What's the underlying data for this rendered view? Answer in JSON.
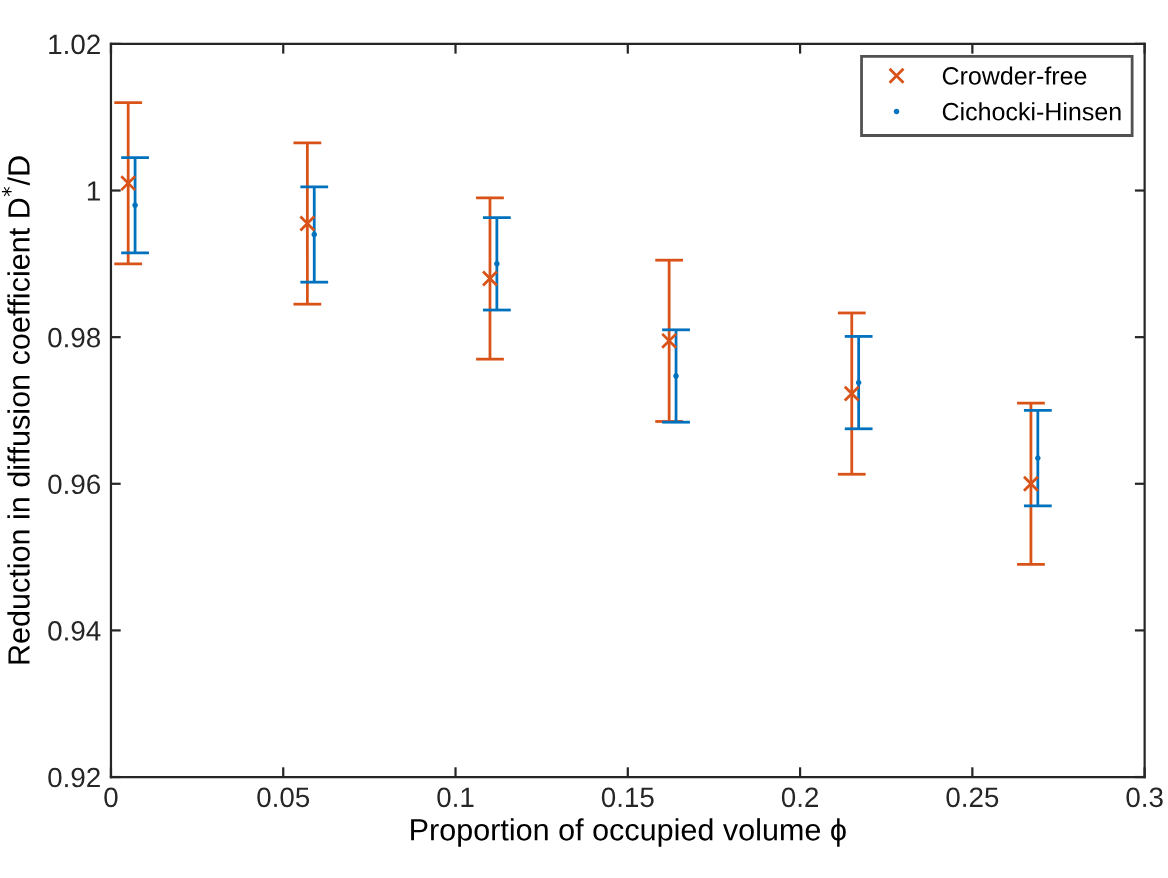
{
  "chart_data": {
    "type": "scatter",
    "xlabel": "Proportion of occupied volume ϕ",
    "ylabel": "Reduction in diffusion coefficient D$^{*}$/D",
    "xlim": [
      0,
      0.3
    ],
    "xticks": [
      0,
      0.05,
      0.1,
      0.15,
      0.2,
      0.25,
      0.3
    ],
    "ylim": [
      0.92,
      1.02
    ],
    "yticks": [
      0.92,
      0.94,
      0.96,
      0.98,
      1,
      1.02
    ],
    "grid": false,
    "legend": "top right",
    "series": [
      {
        "name": "Crowder-free",
        "color": "#d95319",
        "marker": "cross",
        "x": [
          0.005,
          0.057,
          0.11,
          0.162,
          0.215,
          0.267
        ],
        "values": [
          1.001,
          0.9955,
          0.988,
          0.9795,
          0.9723,
          0.96
        ],
        "errors": [
          0.011,
          0.011,
          0.011,
          0.011,
          0.011,
          0.011
        ]
      },
      {
        "name": "Cichocki-Hinsen",
        "color": "#0072bd",
        "marker": "circle",
        "x": [
          0.007,
          0.059,
          0.112,
          0.164,
          0.217,
          0.269
        ],
        "values": [
          0.998,
          0.994,
          0.99,
          0.9747,
          0.9738,
          0.9635
        ],
        "errors": [
          0.0065,
          0.0065,
          0.0063,
          0.0063,
          0.0063,
          0.0065
        ]
      }
    ]
  }
}
